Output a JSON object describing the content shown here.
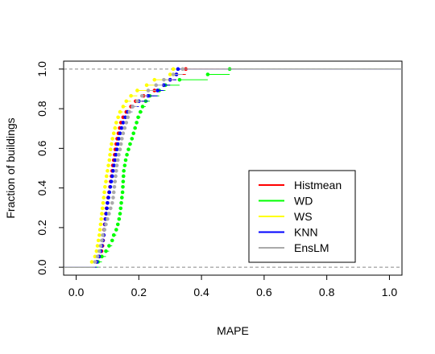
{
  "chart_data": {
    "type": "line",
    "subtype": "empirical cumulative distribution (step)",
    "xlabel": "MAPE",
    "ylabel": "Fraction of buildings",
    "xlim": [
      -0.04,
      1.04
    ],
    "ylim": [
      -0.04,
      1.04
    ],
    "x_ticks": [
      "0.0",
      "0.2",
      "0.4",
      "0.6",
      "0.8",
      "1.0"
    ],
    "y_ticks": [
      "0.0",
      "0.2",
      "0.4",
      "0.6",
      "0.8",
      "1.0"
    ],
    "reference_lines_y": [
      0,
      1
    ],
    "grid": false,
    "legend_position": "center-right",
    "series": [
      {
        "name": "Histmean",
        "color": "#ff0000",
        "x": [
          0.066,
          0.074,
          0.081,
          0.084,
          0.086,
          0.088,
          0.089,
          0.091,
          0.093,
          0.095,
          0.097,
          0.1,
          0.102,
          0.105,
          0.108,
          0.11,
          0.113,
          0.115,
          0.117,
          0.12,
          0.123,
          0.125,
          0.128,
          0.131,
          0.135,
          0.139,
          0.143,
          0.15,
          0.16,
          0.175,
          0.19,
          0.215,
          0.25,
          0.28,
          0.3,
          0.32,
          0.35
        ]
      },
      {
        "name": "WD",
        "color": "#00ff00",
        "x": [
          0.07,
          0.082,
          0.095,
          0.105,
          0.115,
          0.12,
          0.128,
          0.133,
          0.137,
          0.14,
          0.142,
          0.144,
          0.146,
          0.148,
          0.149,
          0.15,
          0.151,
          0.152,
          0.155,
          0.158,
          0.162,
          0.167,
          0.172,
          0.178,
          0.183,
          0.188,
          0.193,
          0.198,
          0.205,
          0.212,
          0.222,
          0.235,
          0.265,
          0.285,
          0.33,
          0.42,
          0.49
        ]
      },
      {
        "name": "WS",
        "color": "#ffff00",
        "x": [
          0.05,
          0.06,
          0.065,
          0.068,
          0.071,
          0.074,
          0.076,
          0.078,
          0.08,
          0.082,
          0.084,
          0.086,
          0.088,
          0.09,
          0.092,
          0.095,
          0.097,
          0.1,
          0.103,
          0.106,
          0.108,
          0.11,
          0.113,
          0.116,
          0.12,
          0.124,
          0.128,
          0.134,
          0.14,
          0.15,
          0.16,
          0.175,
          0.195,
          0.225,
          0.25,
          0.3,
          0.31
        ]
      },
      {
        "name": "KNN",
        "color": "#0000ff",
        "x": [
          0.066,
          0.073,
          0.078,
          0.082,
          0.085,
          0.088,
          0.09,
          0.092,
          0.094,
          0.096,
          0.098,
          0.1,
          0.103,
          0.106,
          0.109,
          0.112,
          0.115,
          0.118,
          0.121,
          0.124,
          0.127,
          0.13,
          0.133,
          0.136,
          0.14,
          0.145,
          0.15,
          0.157,
          0.165,
          0.18,
          0.2,
          0.23,
          0.26,
          0.28,
          0.3,
          0.32,
          0.325
        ]
      },
      {
        "name": "EnsLM",
        "color": "#aaaaaa",
        "x": [
          0.06,
          0.068,
          0.074,
          0.078,
          0.082,
          0.085,
          0.09,
          0.095,
          0.1,
          0.105,
          0.11,
          0.115,
          0.118,
          0.12,
          0.122,
          0.124,
          0.126,
          0.128,
          0.13,
          0.133,
          0.136,
          0.14,
          0.143,
          0.146,
          0.15,
          0.155,
          0.16,
          0.165,
          0.17,
          0.18,
          0.195,
          0.21,
          0.23,
          0.255,
          0.28,
          0.31,
          0.34
        ]
      }
    ],
    "y_step": 0.027027
  }
}
